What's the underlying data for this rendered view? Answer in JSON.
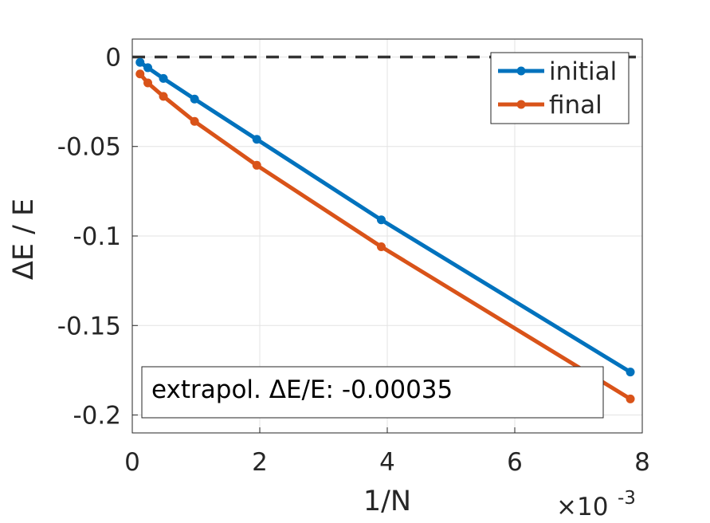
{
  "chart_data": {
    "type": "line",
    "xlabel": "1/N",
    "ylabel": "ΔE / E",
    "x_multiplier_label": "×10",
    "x_multiplier_exponent": "-3",
    "xlim": [
      0,
      0.008
    ],
    "ylim": [
      -0.21,
      0.01
    ],
    "x_ticks": [
      0,
      0.002,
      0.004,
      0.006,
      0.008
    ],
    "x_tick_labels": [
      "0",
      "2",
      "4",
      "6",
      "8"
    ],
    "y_ticks": [
      0,
      -0.05,
      -0.1,
      -0.15,
      -0.2
    ],
    "y_tick_labels": [
      "0",
      "-0.05",
      "-0.1",
      "-0.15",
      "-0.2"
    ],
    "grid": true,
    "legend_position": "top-right",
    "reference_line": {
      "y": 0,
      "style": "dashed",
      "color": "#333333"
    },
    "series": [
      {
        "name": "initial",
        "color": "#0072BD",
        "x": [
          0.000122,
          0.000244,
          0.000488,
          0.000977,
          0.001953,
          0.003906,
          0.007813
        ],
        "y": [
          -0.003,
          -0.006,
          -0.012,
          -0.0235,
          -0.046,
          -0.091,
          -0.176
        ]
      },
      {
        "name": "final",
        "color": "#D95319",
        "x": [
          0.000122,
          0.000244,
          0.000488,
          0.000977,
          0.001953,
          0.003906,
          0.007813
        ],
        "y": [
          -0.0095,
          -0.0145,
          -0.022,
          -0.036,
          -0.0605,
          -0.106,
          -0.191
        ]
      }
    ],
    "annotation": "extrapol. ΔE/E: -0.00035"
  }
}
